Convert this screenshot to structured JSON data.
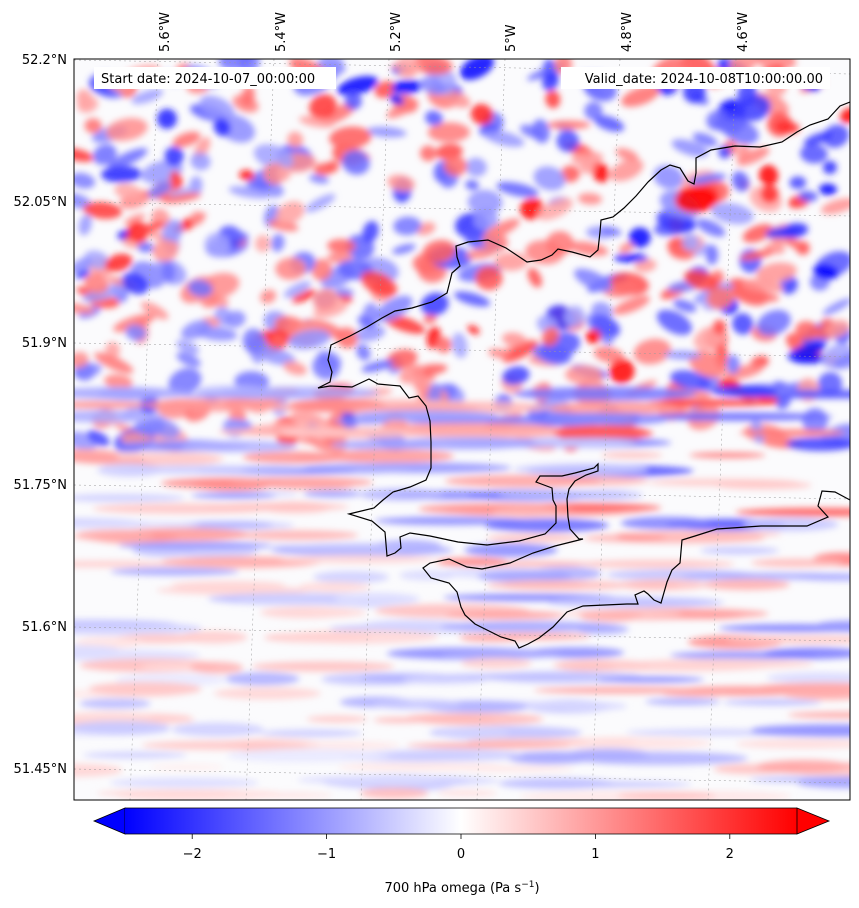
{
  "map": {
    "start_date": "Start date: 2024-10-07_00:00:00",
    "valid_date": "Valid_date: 2024-10-08T10:00:00.00",
    "lon_labels": [
      "5.6°W",
      "5.4°W",
      "5.2°W",
      "5°W",
      "4.8°W",
      "4.6°W"
    ],
    "lat_labels": [
      "52.2°N",
      "52.05°N",
      "51.9°N",
      "51.75°N",
      "51.6°N",
      "51.45°N"
    ],
    "variable": "700 hPa omega",
    "units": "Pa s",
    "units_exponent": "−1",
    "colormap": "bwr",
    "colors": {
      "min": "#0000ff",
      "mid": "#ffffff",
      "max": "#ff0000",
      "coast": "#000000",
      "grid": "#b0b0b0"
    }
  },
  "colorbar": {
    "range": [
      -2.5,
      2.5
    ],
    "ticks": [
      {
        "value": -2,
        "label": "−2"
      },
      {
        "value": -1,
        "label": "−1"
      },
      {
        "value": 0,
        "label": "0"
      },
      {
        "value": 1,
        "label": "1"
      },
      {
        "value": 2,
        "label": "2"
      }
    ],
    "extend": "both"
  }
}
